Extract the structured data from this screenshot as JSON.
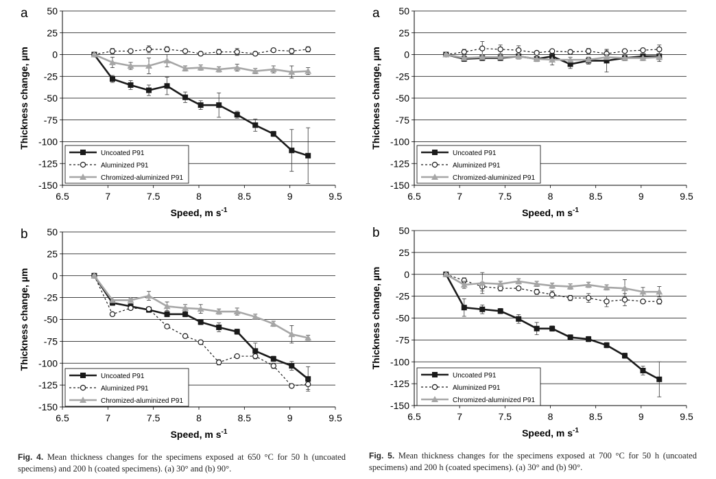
{
  "series_styles": {
    "uncoated": {
      "color": "#1a1a1a",
      "marker": "square",
      "line": "solid"
    },
    "aluminized": {
      "color": "#1a1a1a",
      "marker": "open-circle",
      "line": "dashed"
    },
    "chromized": {
      "color": "#a6a6a6",
      "marker": "triangle",
      "line": "solid"
    }
  },
  "captions": {
    "fig4": {
      "label": "Fig. 4.",
      "text": "Mean thickness changes for the specimens exposed at 650 °C for 50 h (uncoated specimens) and 200 h (coated specimens). (a) 30° and (b) 90°."
    },
    "fig5": {
      "label": "Fig. 5.",
      "text": "Mean thickness changes for the specimens exposed at 700 °C for 50 h (uncoated specimens) and 200 h (coated specimens). (a) 30° and (b) 90°."
    }
  },
  "chart_data": [
    {
      "id": "fig4a",
      "panel_label": "a",
      "type": "line",
      "xlabel": "Speed, m s-1",
      "ylabel": "Thickness change, µm",
      "xlim": [
        6.5,
        9.5
      ],
      "ylim": [
        -150,
        50
      ],
      "xticks": [
        "6.5",
        "7",
        "7.5",
        "8",
        "8.5",
        "9",
        "9.5"
      ],
      "yticks": [
        "50",
        "25",
        "0",
        "-25",
        "-50",
        "-75",
        "-100",
        "-125",
        "-150"
      ],
      "grid": "horizontal",
      "legend": "bottom-left",
      "series": [
        {
          "name": "Uncoated P91",
          "style": "uncoated",
          "x": [
            6.85,
            7.05,
            7.25,
            7.45,
            7.65,
            7.85,
            8.02,
            8.22,
            8.42,
            8.62,
            8.82,
            9.02,
            9.2
          ],
          "y": [
            0,
            -28,
            -35,
            -41,
            -36,
            -49,
            -58,
            -58,
            -69,
            -81,
            -91,
            -110,
            -116
          ],
          "err": [
            0,
            4,
            5,
            6,
            10,
            6,
            5,
            14,
            4,
            7,
            3,
            24,
            32
          ]
        },
        {
          "name": "Aluminized P91",
          "style": "aluminized",
          "x": [
            6.85,
            7.05,
            7.25,
            7.45,
            7.65,
            7.85,
            8.02,
            8.22,
            8.42,
            8.62,
            8.82,
            9.02,
            9.2
          ],
          "y": [
            0,
            4,
            4,
            6,
            6,
            4,
            1,
            3,
            3,
            1,
            5,
            4,
            6
          ],
          "err": [
            0,
            3,
            2,
            4,
            3,
            2,
            2,
            3,
            4,
            1,
            2,
            3,
            3
          ]
        },
        {
          "name": "Chromized-aluminized P91",
          "style": "chromized",
          "x": [
            6.85,
            7.05,
            7.25,
            7.45,
            7.65,
            7.85,
            8.02,
            8.22,
            8.42,
            8.62,
            8.82,
            9.02,
            9.2
          ],
          "y": [
            0,
            -9,
            -13,
            -13,
            -7,
            -16,
            -15,
            -17,
            -15,
            -19,
            -17,
            -20,
            -19
          ],
          "err": [
            0,
            6,
            4,
            9,
            7,
            3,
            3,
            3,
            4,
            3,
            4,
            7,
            4
          ]
        }
      ]
    },
    {
      "id": "fig4b",
      "panel_label": "b",
      "type": "line",
      "xlabel": "Speed, m s-1",
      "ylabel": "Thickness change, µm",
      "xlim": [
        6.5,
        9.5
      ],
      "ylim": [
        -150,
        50
      ],
      "xticks": [
        "6.5",
        "7",
        "7.5",
        "8",
        "8.5",
        "9",
        "9.5"
      ],
      "yticks": [
        "50",
        "25",
        "0",
        "-25",
        "-50",
        "-75",
        "-100",
        "-125",
        "-150"
      ],
      "grid": "horizontal",
      "legend": "bottom-left",
      "series": [
        {
          "name": "Uncoated P91",
          "style": "uncoated",
          "x": [
            6.85,
            7.05,
            7.25,
            7.45,
            7.65,
            7.85,
            8.02,
            8.22,
            8.42,
            8.62,
            8.82,
            9.02,
            9.2
          ],
          "y": [
            0,
            -31,
            -35,
            -39,
            -44,
            -44,
            -53,
            -59,
            -64,
            -86,
            -95,
            -103,
            -118
          ],
          "err": [
            0,
            3,
            3,
            3,
            3,
            3,
            3,
            5,
            3,
            9,
            3,
            5,
            14
          ]
        },
        {
          "name": "Aluminized P91",
          "style": "aluminized",
          "x": [
            6.85,
            7.05,
            7.25,
            7.45,
            7.65,
            7.85,
            8.02,
            8.22,
            8.42,
            8.62,
            8.82,
            9.02,
            9.2
          ],
          "y": [
            0,
            -44,
            -37,
            -38,
            -58,
            -69,
            -76,
            -99,
            -92,
            -92,
            -103,
            -126,
            -124
          ],
          "err": [
            0,
            2,
            2,
            2,
            2,
            2,
            2,
            3,
            2,
            2,
            3,
            2,
            6
          ]
        },
        {
          "name": "Chromized-aluminized P91",
          "style": "chromized",
          "x": [
            6.85,
            7.05,
            7.25,
            7.45,
            7.65,
            7.85,
            8.02,
            8.22,
            8.42,
            8.62,
            8.82,
            9.02,
            9.2
          ],
          "y": [
            0,
            -28,
            -28,
            -23,
            -35,
            -37,
            -38,
            -41,
            -41,
            -47,
            -55,
            -67,
            -71
          ],
          "err": [
            0,
            3,
            2,
            5,
            5,
            4,
            5,
            3,
            4,
            3,
            3,
            10,
            3
          ]
        }
      ]
    },
    {
      "id": "fig5a",
      "panel_label": "a",
      "type": "line",
      "xlabel": "Speed, m s-1",
      "ylabel": "Thickness change, µm",
      "xlim": [
        6.5,
        9.5
      ],
      "ylim": [
        -150,
        50
      ],
      "xticks": [
        "6.5",
        "7",
        "7.5",
        "8",
        "8.5",
        "9",
        "9.5"
      ],
      "yticks": [
        "50",
        "25",
        "0",
        "-25",
        "-50",
        "-75",
        "-100",
        "-125",
        "-150"
      ],
      "grid": "horizontal",
      "legend": "bottom-left",
      "series": [
        {
          "name": "Uncoated P91",
          "style": "uncoated",
          "x": [
            6.85,
            7.05,
            7.25,
            7.45,
            7.65,
            7.85,
            8.02,
            8.22,
            8.42,
            8.62,
            8.82,
            9.02,
            9.2
          ],
          "y": [
            0,
            -5,
            -4,
            -4,
            -2,
            -5,
            -2,
            -11,
            -7,
            -7,
            -4,
            -2,
            -2
          ],
          "err": [
            0,
            3,
            3,
            3,
            3,
            3,
            3,
            5,
            4,
            13,
            3,
            3,
            6
          ]
        },
        {
          "name": "Aluminized P91",
          "style": "aluminized",
          "x": [
            6.85,
            7.05,
            7.25,
            7.45,
            7.65,
            7.85,
            8.02,
            8.22,
            8.42,
            8.62,
            8.82,
            9.02,
            9.2
          ],
          "y": [
            0,
            3,
            7,
            6,
            5,
            2,
            4,
            3,
            4,
            1,
            4,
            5,
            6
          ],
          "err": [
            0,
            3,
            8,
            5,
            5,
            2,
            2,
            2,
            3,
            4,
            2,
            2,
            5
          ]
        },
        {
          "name": "Chromized-aluminized P91",
          "style": "chromized",
          "x": [
            6.85,
            7.05,
            7.25,
            7.45,
            7.65,
            7.85,
            8.02,
            8.22,
            8.42,
            8.62,
            8.82,
            9.02,
            9.2
          ],
          "y": [
            0,
            -4,
            -3,
            -3,
            -2,
            -5,
            -6,
            -6,
            -6,
            -3,
            -4,
            -4,
            -3
          ],
          "err": [
            0,
            3,
            3,
            3,
            3,
            3,
            6,
            3,
            3,
            3,
            3,
            3,
            3
          ]
        }
      ]
    },
    {
      "id": "fig5b",
      "panel_label": "b",
      "type": "line",
      "xlabel": "Speed, m s-1",
      "ylabel": "Thickness change, µm",
      "xlim": [
        6.5,
        9.5
      ],
      "ylim": [
        -150,
        50
      ],
      "xticks": [
        "6.5",
        "7",
        "7.5",
        "8",
        "8.5",
        "9",
        "9.5"
      ],
      "yticks": [
        "50",
        "25",
        "0",
        "-25",
        "-50",
        "-75",
        "-100",
        "-125",
        "-150"
      ],
      "grid": "horizontal",
      "legend": "bottom-left",
      "series": [
        {
          "name": "Uncoated P91",
          "style": "uncoated",
          "x": [
            6.85,
            7.05,
            7.25,
            7.45,
            7.65,
            7.85,
            8.02,
            8.22,
            8.42,
            8.62,
            8.82,
            9.02,
            9.2
          ],
          "y": [
            0,
            -38,
            -40,
            -42,
            -51,
            -62,
            -62,
            -72,
            -74,
            -81,
            -93,
            -110,
            -120
          ],
          "err": [
            0,
            10,
            5,
            3,
            5,
            7,
            3,
            3,
            3,
            3,
            3,
            5,
            20
          ]
        },
        {
          "name": "Aluminized P91",
          "style": "aluminized",
          "x": [
            6.85,
            7.05,
            7.25,
            7.45,
            7.65,
            7.85,
            8.02,
            8.22,
            8.42,
            8.62,
            8.82,
            9.02,
            9.2
          ],
          "y": [
            0,
            -7,
            -14,
            -16,
            -16,
            -20,
            -23,
            -27,
            -27,
            -31,
            -29,
            -31,
            -31
          ],
          "err": [
            0,
            3,
            5,
            3,
            2,
            3,
            4,
            3,
            5,
            6,
            7,
            2,
            3
          ]
        },
        {
          "name": "Chromized-aluminized P91",
          "style": "chromized",
          "x": [
            6.85,
            7.05,
            7.25,
            7.45,
            7.65,
            7.85,
            8.02,
            8.22,
            8.42,
            8.62,
            8.82,
            9.02,
            9.2
          ],
          "y": [
            0,
            -12,
            -10,
            -11,
            -8,
            -11,
            -13,
            -14,
            -12,
            -15,
            -16,
            -20,
            -20
          ],
          "err": [
            0,
            4,
            12,
            3,
            3,
            3,
            3,
            3,
            3,
            3,
            10,
            5,
            6
          ]
        }
      ]
    }
  ]
}
